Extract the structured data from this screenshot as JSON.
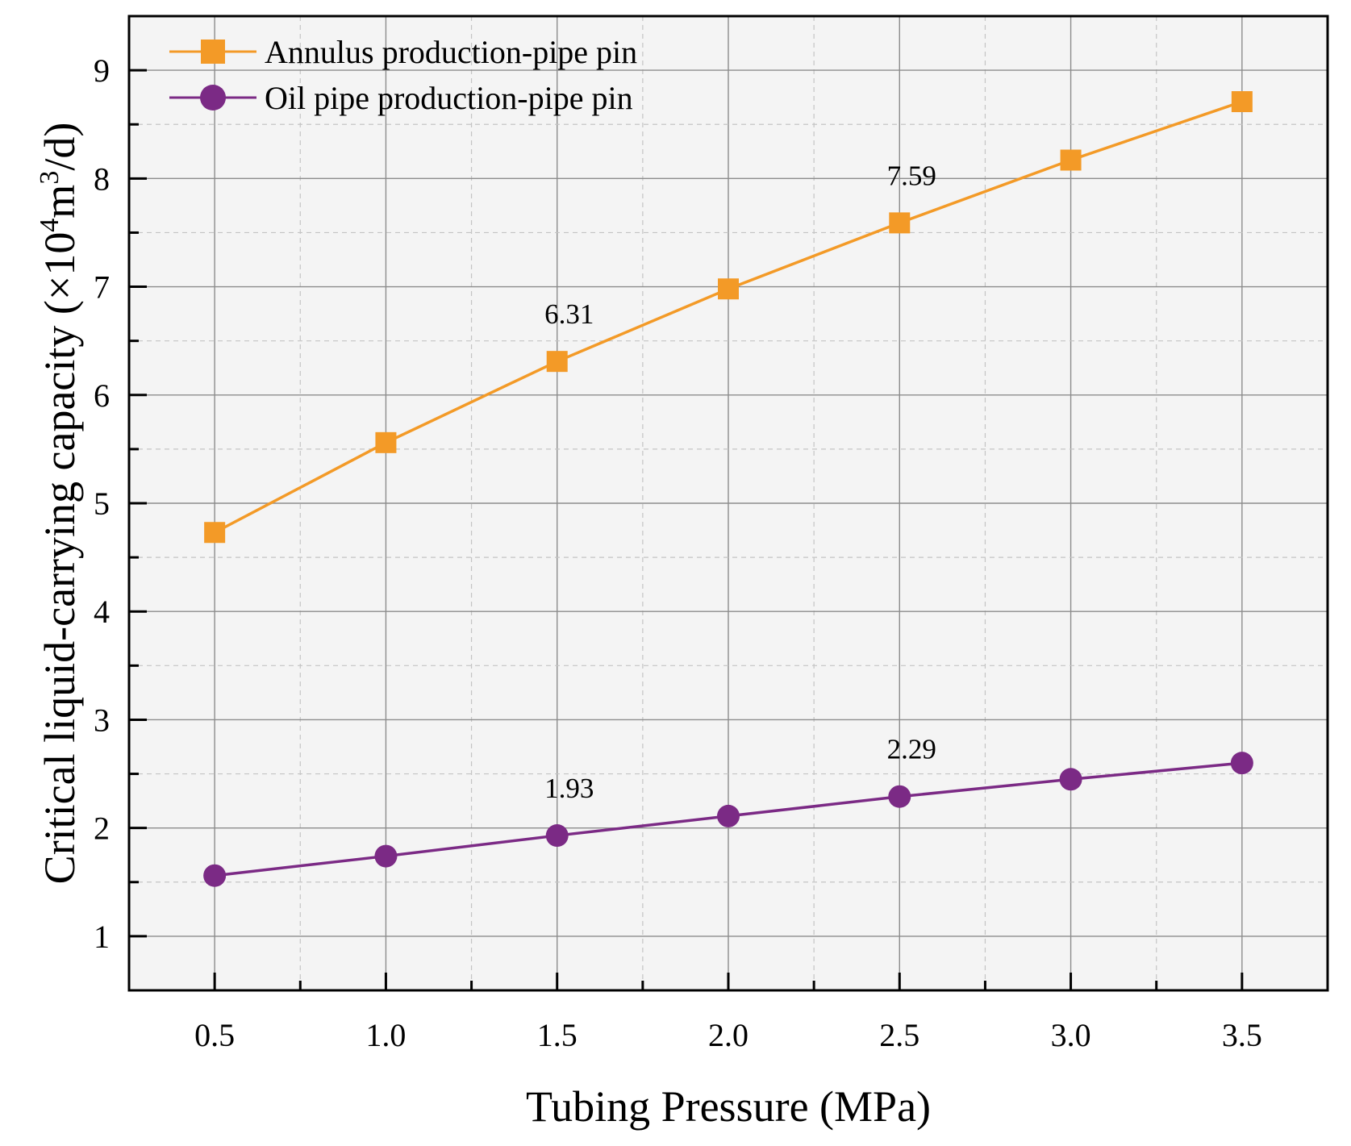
{
  "chart_data": {
    "type": "line",
    "title": "",
    "xlabel": "Tubing Pressure (MPa)",
    "ylabel_main": "Critical liquid-carrying capacity (×10",
    "ylabel_sup1": "4",
    "ylabel_mid": "m",
    "ylabel_sup2": "3",
    "ylabel_end": "/d)",
    "x": [
      0.5,
      1.0,
      1.5,
      2.0,
      2.5,
      3.0,
      3.5
    ],
    "x_tick_labels": [
      "0.5",
      "1.0",
      "1.5",
      "2.0",
      "2.5",
      "3.0",
      "3.5"
    ],
    "y_ticks": [
      1,
      2,
      3,
      4,
      5,
      6,
      7,
      8,
      9
    ],
    "y_tick_labels": [
      "1",
      "2",
      "3",
      "4",
      "5",
      "6",
      "7",
      "8",
      "9"
    ],
    "xlim": [
      0.25,
      3.75
    ],
    "ylim": [
      0.5,
      9.5
    ],
    "grid": true,
    "legend_position": "top-left",
    "series": [
      {
        "name": "Annulus production-pipe pin",
        "color": "#F39A27",
        "marker": "square",
        "values": [
          4.73,
          5.56,
          6.31,
          6.98,
          7.59,
          8.17,
          8.71
        ]
      },
      {
        "name": "Oil pipe production-pipe pin",
        "color": "#7B2A85",
        "marker": "circle",
        "values": [
          1.56,
          1.74,
          1.93,
          2.11,
          2.29,
          2.45,
          2.6
        ]
      }
    ],
    "annotations": [
      {
        "series": 0,
        "x": 1.5,
        "text": "6.31"
      },
      {
        "series": 0,
        "x": 2.5,
        "text": "7.59"
      },
      {
        "series": 1,
        "x": 1.5,
        "text": "1.93"
      },
      {
        "series": 1,
        "x": 2.5,
        "text": "2.29"
      }
    ]
  }
}
